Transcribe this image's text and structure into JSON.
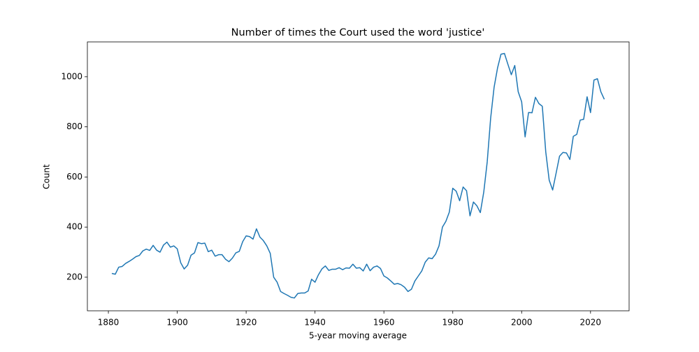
{
  "chart_data": {
    "type": "line",
    "title": "Number of times the Court used the word 'justice'",
    "x_label": "5-year moving average",
    "y_label": "Count",
    "x": [
      1881,
      1882,
      1883,
      1884,
      1885,
      1886,
      1887,
      1888,
      1889,
      1890,
      1891,
      1892,
      1893,
      1894,
      1895,
      1896,
      1897,
      1898,
      1899,
      1900,
      1901,
      1902,
      1903,
      1904,
      1905,
      1906,
      1907,
      1908,
      1909,
      1910,
      1911,
      1912,
      1913,
      1914,
      1915,
      1916,
      1917,
      1918,
      1919,
      1920,
      1921,
      1922,
      1923,
      1924,
      1925,
      1926,
      1927,
      1928,
      1929,
      1930,
      1931,
      1932,
      1933,
      1934,
      1935,
      1936,
      1937,
      1938,
      1939,
      1940,
      1941,
      1942,
      1943,
      1944,
      1945,
      1946,
      1947,
      1948,
      1949,
      1950,
      1951,
      1952,
      1953,
      1954,
      1955,
      1956,
      1957,
      1958,
      1959,
      1960,
      1961,
      1962,
      1963,
      1964,
      1965,
      1966,
      1967,
      1968,
      1969,
      1970,
      1971,
      1972,
      1973,
      1974,
      1975,
      1976,
      1977,
      1978,
      1979,
      1980,
      1981,
      1982,
      1983,
      1984,
      1985,
      1986,
      1987,
      1988,
      1989,
      1990,
      1991,
      1992,
      1993,
      1994,
      1995,
      1996,
      1997,
      1998,
      1999,
      2000,
      2001,
      2002,
      2003,
      2004,
      2005,
      2006,
      2007,
      2008,
      2009,
      2010,
      2011,
      2012,
      2013,
      2014,
      2015,
      2016,
      2017,
      2018,
      2019,
      2020,
      2021,
      2022,
      2023,
      2024
    ],
    "series": [
      {
        "color": "#1f77b4",
        "values": [
          215,
          212,
          240,
          243,
          255,
          263,
          272,
          282,
          287,
          305,
          312,
          307,
          327,
          308,
          300,
          328,
          340,
          320,
          325,
          313,
          258,
          233,
          248,
          288,
          297,
          338,
          334,
          336,
          302,
          308,
          284,
          290,
          290,
          272,
          262,
          276,
          297,
          303,
          342,
          365,
          362,
          352,
          393,
          360,
          346,
          325,
          295,
          200,
          180,
          143,
          135,
          128,
          120,
          117,
          135,
          137,
          137,
          145,
          192,
          180,
          210,
          233,
          245,
          227,
          232,
          232,
          238,
          230,
          237,
          236,
          252,
          236,
          238,
          225,
          252,
          226,
          240,
          245,
          235,
          205,
          197,
          185,
          172,
          175,
          170,
          160,
          143,
          152,
          185,
          205,
          225,
          260,
          277,
          274,
          292,
          325,
          400,
          423,
          460,
          555,
          543,
          505,
          560,
          545,
          445,
          500,
          485,
          458,
          540,
          660,
          835,
          958,
          1035,
          1090,
          1093,
          1050,
          1008,
          1045,
          940,
          900,
          760,
          857,
          856,
          918,
          893,
          882,
          700,
          587,
          548,
          615,
          683,
          698,
          696,
          670,
          762,
          770,
          827,
          830,
          920,
          857,
          987,
          992,
          940,
          910
        ]
      }
    ],
    "xlim": [
      1873.9,
      2031.2
    ],
    "ylim": [
      66,
      1139
    ],
    "xticks": [
      1880,
      1900,
      1920,
      1940,
      1960,
      1980,
      2000,
      2020
    ],
    "yticks": [
      200,
      400,
      600,
      800,
      1000
    ]
  }
}
